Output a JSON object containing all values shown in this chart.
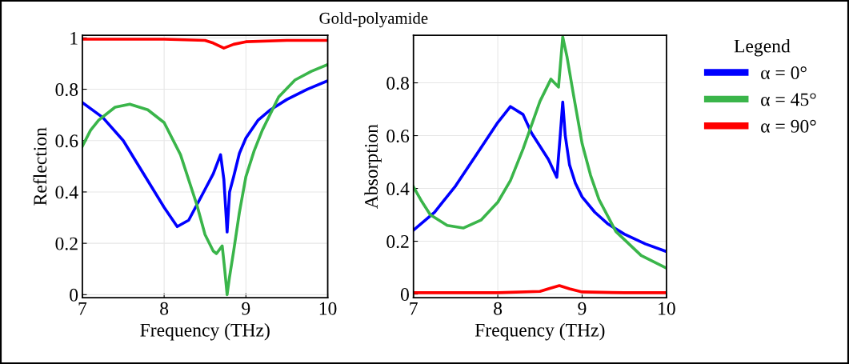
{
  "chart_data": [
    {
      "type": "line",
      "title": "Gold-polyamide",
      "xlabel": "Frequency (THz)",
      "ylabel": "Reflection",
      "xlim": [
        7,
        10
      ],
      "ylim": [
        -0.012,
        1.01
      ],
      "xticks": [
        7,
        8,
        9,
        10
      ],
      "yticks": [
        0,
        0.2,
        0.4,
        0.6,
        0.8,
        1
      ],
      "grid": true,
      "series": [
        {
          "color": "#0000ff",
          "x": [
            7,
            7.25,
            7.5,
            7.75,
            8,
            8.16,
            8.3,
            8.4,
            8.5,
            8.6,
            8.69,
            8.73,
            8.77,
            8.8,
            8.85,
            8.92,
            9,
            9.15,
            9.3,
            9.5,
            9.75,
            10
          ],
          "values": [
            0.748,
            0.69,
            0.6,
            0.47,
            0.34,
            0.265,
            0.29,
            0.35,
            0.41,
            0.47,
            0.545,
            0.45,
            0.244,
            0.4,
            0.46,
            0.55,
            0.61,
            0.68,
            0.72,
            0.76,
            0.8,
            0.833
          ]
        },
        {
          "color": "#3ab54a",
          "x": [
            7,
            7.1,
            7.2,
            7.4,
            7.58,
            7.8,
            8,
            8.2,
            8.4,
            8.5,
            8.6,
            8.64,
            8.71,
            8.74,
            8.77,
            8.8,
            8.85,
            8.92,
            9,
            9.1,
            9.2,
            9.4,
            9.6,
            9.8,
            10
          ],
          "values": [
            0.578,
            0.64,
            0.68,
            0.73,
            0.742,
            0.72,
            0.67,
            0.545,
            0.35,
            0.234,
            0.17,
            0.16,
            0.19,
            0.1,
            0.0,
            0.07,
            0.17,
            0.32,
            0.46,
            0.56,
            0.64,
            0.77,
            0.836,
            0.87,
            0.896
          ]
        },
        {
          "color": "#ff0000",
          "x": [
            7,
            8,
            8.5,
            8.6,
            8.73,
            8.85,
            9,
            9.5,
            10
          ],
          "values": [
            0.995,
            0.995,
            0.99,
            0.98,
            0.96,
            0.975,
            0.985,
            0.99,
            0.99
          ]
        }
      ]
    },
    {
      "type": "line",
      "xlabel": "Frequency (THz)",
      "ylabel": "Absorption",
      "xlim": [
        7,
        10
      ],
      "ylim": [
        -0.014,
        0.98
      ],
      "xticks": [
        7,
        8,
        9,
        10
      ],
      "yticks": [
        0,
        0.2,
        0.4,
        0.6,
        0.8
      ],
      "grid": true,
      "legend": "right",
      "legend_title": "Legend",
      "series": [
        {
          "name": "α = 0°",
          "color": "#0000ff",
          "x": [
            7,
            7.25,
            7.5,
            7.75,
            8,
            8.15,
            8.3,
            8.4,
            8.5,
            8.6,
            8.7,
            8.74,
            8.77,
            8.8,
            8.85,
            8.92,
            9,
            9.15,
            9.3,
            9.5,
            9.75,
            10
          ],
          "values": [
            0.242,
            0.31,
            0.41,
            0.53,
            0.65,
            0.71,
            0.68,
            0.61,
            0.56,
            0.51,
            0.442,
            0.6,
            0.727,
            0.6,
            0.49,
            0.42,
            0.368,
            0.31,
            0.267,
            0.227,
            0.19,
            0.161
          ]
        },
        {
          "name": "α = 45°",
          "color": "#3ab54a",
          "x": [
            7,
            7.1,
            7.2,
            7.4,
            7.59,
            7.8,
            8,
            8.15,
            8.3,
            8.5,
            8.63,
            8.72,
            8.77,
            8.82,
            8.9,
            9,
            9.1,
            9.2,
            9.4,
            9.7,
            10
          ],
          "values": [
            0.406,
            0.35,
            0.3,
            0.26,
            0.25,
            0.28,
            0.348,
            0.43,
            0.55,
            0.73,
            0.814,
            0.784,
            0.974,
            0.9,
            0.75,
            0.57,
            0.45,
            0.358,
            0.237,
            0.146,
            0.098
          ]
        },
        {
          "name": "α = 90°",
          "color": "#ff0000",
          "x": [
            7,
            8,
            8.5,
            8.6,
            8.73,
            8.85,
            9,
            9.5,
            10
          ],
          "values": [
            0.005,
            0.005,
            0.01,
            0.02,
            0.032,
            0.02,
            0.008,
            0.005,
            0.005
          ]
        }
      ]
    }
  ]
}
